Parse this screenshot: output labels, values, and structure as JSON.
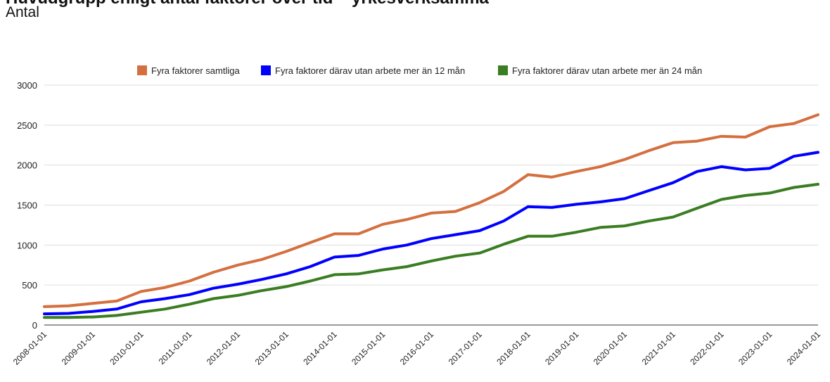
{
  "header": {
    "title": "Huvudgrupp enligt antal faktorer över tid – yrkesverksamma",
    "subtitle": "Antal"
  },
  "chart_data": {
    "type": "line",
    "title": "Huvudgrupp enligt antal faktorer över tid – yrkesverksamma",
    "subtitle": "Antal",
    "xlabel": "",
    "ylabel": "",
    "ylim": [
      0,
      3000
    ],
    "yticks": [
      0,
      500,
      1000,
      1500,
      2000,
      2500,
      3000
    ],
    "x_ticks": [
      "2008-01-01",
      "2009-01-01",
      "2010-01-01",
      "2011-01-01",
      "2012-01-01",
      "2013-01-01",
      "2014-01-01",
      "2015-01-01",
      "2016-01-01",
      "2017-01-01",
      "2018-01-01",
      "2019-01-01",
      "2020-01-01",
      "2021-01-01",
      "2022-01-01",
      "2023-01-01",
      "2024-01-01"
    ],
    "xlim": [
      "2008-01-01",
      "2024-01-01"
    ],
    "grid": true,
    "legend_position": "top",
    "series": [
      {
        "name": "Fyra faktorer samtliga",
        "color": "#d4703f",
        "points": [
          [
            "2008-01-01",
            230
          ],
          [
            "2008-07-01",
            240
          ],
          [
            "2009-01-01",
            270
          ],
          [
            "2009-07-01",
            300
          ],
          [
            "2010-01-01",
            420
          ],
          [
            "2010-07-01",
            470
          ],
          [
            "2011-01-01",
            550
          ],
          [
            "2011-07-01",
            660
          ],
          [
            "2012-01-01",
            750
          ],
          [
            "2012-07-01",
            820
          ],
          [
            "2013-01-01",
            920
          ],
          [
            "2013-07-01",
            1030
          ],
          [
            "2014-01-01",
            1140
          ],
          [
            "2014-07-01",
            1140
          ],
          [
            "2015-01-01",
            1260
          ],
          [
            "2015-07-01",
            1320
          ],
          [
            "2016-01-01",
            1400
          ],
          [
            "2016-07-01",
            1420
          ],
          [
            "2017-01-01",
            1530
          ],
          [
            "2017-07-01",
            1670
          ],
          [
            "2018-01-01",
            1880
          ],
          [
            "2018-07-01",
            1850
          ],
          [
            "2019-01-01",
            1920
          ],
          [
            "2019-07-01",
            1980
          ],
          [
            "2020-01-01",
            2070
          ],
          [
            "2020-07-01",
            2180
          ],
          [
            "2021-01-01",
            2280
          ],
          [
            "2021-07-01",
            2300
          ],
          [
            "2022-01-01",
            2360
          ],
          [
            "2022-07-01",
            2350
          ],
          [
            "2023-01-01",
            2480
          ],
          [
            "2023-07-01",
            2520
          ],
          [
            "2024-01-01",
            2630
          ]
        ]
      },
      {
        "name": "Fyra faktorer därav utan arbete mer än 12 mån",
        "color": "#0000ff",
        "points": [
          [
            "2008-01-01",
            140
          ],
          [
            "2008-07-01",
            145
          ],
          [
            "2009-01-01",
            170
          ],
          [
            "2009-07-01",
            200
          ],
          [
            "2010-01-01",
            290
          ],
          [
            "2010-07-01",
            330
          ],
          [
            "2011-01-01",
            380
          ],
          [
            "2011-07-01",
            460
          ],
          [
            "2012-01-01",
            510
          ],
          [
            "2012-07-01",
            570
          ],
          [
            "2013-01-01",
            640
          ],
          [
            "2013-07-01",
            730
          ],
          [
            "2014-01-01",
            850
          ],
          [
            "2014-07-01",
            870
          ],
          [
            "2015-01-01",
            950
          ],
          [
            "2015-07-01",
            1000
          ],
          [
            "2016-01-01",
            1080
          ],
          [
            "2016-07-01",
            1130
          ],
          [
            "2017-01-01",
            1180
          ],
          [
            "2017-07-01",
            1300
          ],
          [
            "2018-01-01",
            1480
          ],
          [
            "2018-07-01",
            1470
          ],
          [
            "2019-01-01",
            1510
          ],
          [
            "2019-07-01",
            1540
          ],
          [
            "2020-01-01",
            1580
          ],
          [
            "2020-07-01",
            1680
          ],
          [
            "2021-01-01",
            1780
          ],
          [
            "2021-07-01",
            1920
          ],
          [
            "2022-01-01",
            1980
          ],
          [
            "2022-07-01",
            1940
          ],
          [
            "2023-01-01",
            1960
          ],
          [
            "2023-07-01",
            2110
          ],
          [
            "2024-01-01",
            2160
          ]
        ]
      },
      {
        "name": "Fyra faktorer därav utan arbete mer än 24 mån",
        "color": "#3a7d22",
        "points": [
          [
            "2008-01-01",
            95
          ],
          [
            "2008-07-01",
            95
          ],
          [
            "2009-01-01",
            100
          ],
          [
            "2009-07-01",
            120
          ],
          [
            "2010-01-01",
            160
          ],
          [
            "2010-07-01",
            200
          ],
          [
            "2011-01-01",
            260
          ],
          [
            "2011-07-01",
            330
          ],
          [
            "2012-01-01",
            370
          ],
          [
            "2012-07-01",
            430
          ],
          [
            "2013-01-01",
            480
          ],
          [
            "2013-07-01",
            550
          ],
          [
            "2014-01-01",
            630
          ],
          [
            "2014-07-01",
            640
          ],
          [
            "2015-01-01",
            690
          ],
          [
            "2015-07-01",
            730
          ],
          [
            "2016-01-01",
            800
          ],
          [
            "2016-07-01",
            860
          ],
          [
            "2017-01-01",
            900
          ],
          [
            "2017-07-01",
            1010
          ],
          [
            "2018-01-01",
            1110
          ],
          [
            "2018-07-01",
            1110
          ],
          [
            "2019-01-01",
            1160
          ],
          [
            "2019-07-01",
            1220
          ],
          [
            "2020-01-01",
            1240
          ],
          [
            "2020-07-01",
            1300
          ],
          [
            "2021-01-01",
            1350
          ],
          [
            "2021-07-01",
            1460
          ],
          [
            "2022-01-01",
            1570
          ],
          [
            "2022-07-01",
            1620
          ],
          [
            "2023-01-01",
            1650
          ],
          [
            "2023-07-01",
            1720
          ],
          [
            "2024-01-01",
            1760
          ]
        ]
      }
    ]
  }
}
